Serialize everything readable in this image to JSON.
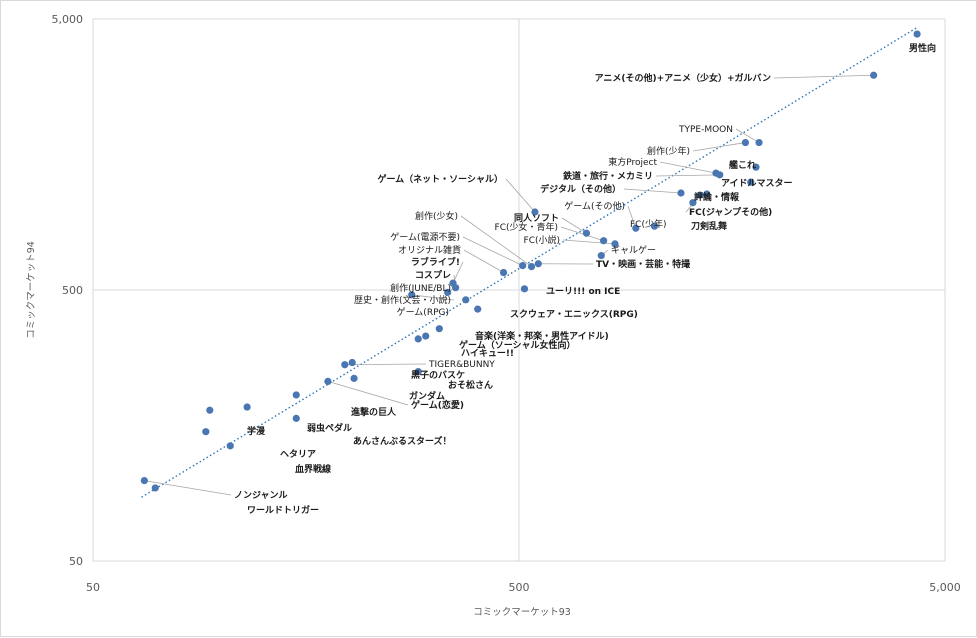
{
  "chart_data": {
    "type": "scatter",
    "xlabel": "コミックマーケット93",
    "ylabel": "コミックマーケット94",
    "xscale": "log",
    "yscale": "log",
    "xlim": [
      50,
      5000
    ],
    "ylim": [
      50,
      5000
    ],
    "xticks": [
      "50",
      "500",
      "5,000"
    ],
    "yticks": [
      "50",
      "500",
      "5,000"
    ],
    "grid": true,
    "trendline": {
      "style": "dotted",
      "color": "#2e75b6",
      "x_start": 65,
      "y_start": 86,
      "x_end": 4300,
      "y_end": 4650
    },
    "marker_color": "#4a76b2",
    "points": [
      {
        "label": "男性向",
        "x": 4300,
        "y": 4400
      },
      {
        "label": "アニメ(その他)+アニメ（少女）+ガルバン",
        "x": 3400,
        "y": 3100
      },
      {
        "label": "TYPE-MOON",
        "x": 1830,
        "y": 1750
      },
      {
        "label": "創作(少年)",
        "x": 1700,
        "y": 1750
      },
      {
        "label": "艦これ",
        "x": 1800,
        "y": 1420
      },
      {
        "label": "東方Project",
        "x": 1450,
        "y": 1350
      },
      {
        "label": "鉄道・旅行・メカミリ",
        "x": 1480,
        "y": 1330
      },
      {
        "label": "アイドルマスター",
        "x": 1750,
        "y": 1250
      },
      {
        "label": "デジタル（その他）",
        "x": 1200,
        "y": 1140
      },
      {
        "label": "評論・情報",
        "x": 1380,
        "y": 1130
      },
      {
        "label": "FC(ジャンプその他)",
        "x": 1330,
        "y": 1120
      },
      {
        "label": "ゲーム（ネット・ソーシャル）",
        "x": 545,
        "y": 970
      },
      {
        "label": "刀剣乱舞",
        "x": 1280,
        "y": 1050
      },
      {
        "label": "ゲーム(その他)",
        "x": 940,
        "y": 845
      },
      {
        "label": "FC(少年)",
        "x": 1040,
        "y": 860
      },
      {
        "label": "同人ソフト",
        "x": 720,
        "y": 810
      },
      {
        "label": "FC(少女・青年)",
        "x": 790,
        "y": 760
      },
      {
        "label": "FC(小説)",
        "x": 840,
        "y": 740
      },
      {
        "label": "ギャルゲー",
        "x": 780,
        "y": 670
      },
      {
        "label": "創作(少女)",
        "x": 535,
        "y": 610
      },
      {
        "label": "TV・映画・芸能・特撮",
        "x": 555,
        "y": 625
      },
      {
        "label": "ゲーム(電源不要)",
        "x": 510,
        "y": 615
      },
      {
        "label": "オリジナル雑貨",
        "x": 460,
        "y": 580
      },
      {
        "label": "ラブライブ!",
        "x": 350,
        "y": 530
      },
      {
        "label": "コスプレ",
        "x": 355,
        "y": 510
      },
      {
        "label": "創作(JUNE/BL)",
        "x": 340,
        "y": 490
      },
      {
        "label": "ユーリ!!! on ICE",
        "x": 515,
        "y": 505
      },
      {
        "label": "歴史・創作(文芸・小説)",
        "x": 280,
        "y": 480
      },
      {
        "label": "ゲーム(RPG)",
        "x": 400,
        "y": 425
      },
      {
        "label": "スクウェア・エニックス(RPG)",
        "x": 375,
        "y": 460
      },
      {
        "label": "音楽(洋楽・邦楽・男性アイドル)",
        "x": 325,
        "y": 360
      },
      {
        "label": "ゲーム（ソーシャル女性向）",
        "x": 302,
        "y": 338
      },
      {
        "label": "ハイキュー!!",
        "x": 290,
        "y": 330
      },
      {
        "label": "TIGER&BUNNY",
        "x": 195,
        "y": 265
      },
      {
        "label": "黒子のバスケ",
        "x": 203,
        "y": 270
      },
      {
        "label": "おそ松さん",
        "x": 290,
        "y": 250
      },
      {
        "label": "ガンダム",
        "x": 205,
        "y": 236
      },
      {
        "label": "ゲーム(恋愛)",
        "x": 178,
        "y": 230
      },
      {
        "label": "進撃の巨人",
        "x": 150,
        "y": 205
      },
      {
        "label": "弱虫ペダル",
        "x": 115,
        "y": 185
      },
      {
        "label": "学漫",
        "x": 94,
        "y": 180
      },
      {
        "label": "あんさんぶるスターズ！",
        "x": 150,
        "y": 168
      },
      {
        "label": "ヘタリア",
        "x": 92,
        "y": 150
      },
      {
        "label": "血界戦線",
        "x": 105,
        "y": 133
      },
      {
        "label": "ノンジャンル",
        "x": 66,
        "y": 99
      },
      {
        "label": "ワールドトリガー",
        "x": 70,
        "y": 93
      }
    ]
  }
}
